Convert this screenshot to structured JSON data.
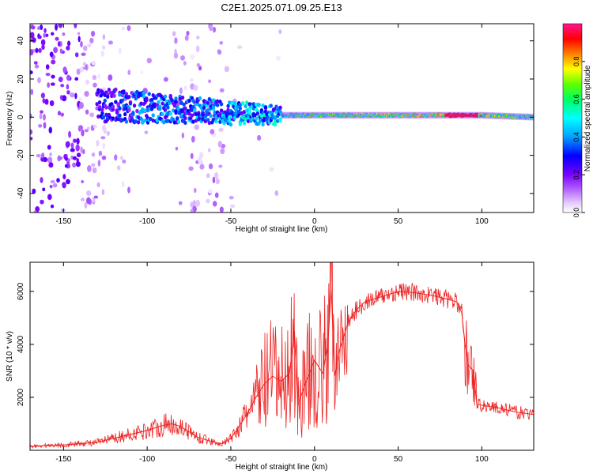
{
  "page_title": "C2E1.2025.071.09.25.E13",
  "chart_data": [
    {
      "type": "heatmap",
      "title": "C2E1.2025.071.09.25.E13",
      "xlabel": "Height of straight line (km)",
      "ylabel": "Frequency (Hz)",
      "xlim": [
        -170,
        131
      ],
      "ylim": [
        -50,
        49
      ],
      "xticks": [
        -150,
        -100,
        -50,
        0,
        50,
        100
      ],
      "yticks": [
        -40,
        -20,
        0,
        20,
        40
      ],
      "colorbar": {
        "label": "Normalized spectral amplitude",
        "range": [
          0,
          1
        ],
        "ticks": [
          "0.0",
          "0.2",
          "0.4",
          "0.6",
          "0.8"
        ],
        "tick_values": [
          0.0,
          0.2,
          0.4,
          0.6,
          0.8
        ]
      },
      "colormap": [
        "#ffffff",
        "#e6ccff",
        "#b366ff",
        "#7a00ff",
        "#0000ff",
        "#00a0ff",
        "#00ffff",
        "#00ff60",
        "#60ff00",
        "#ffff00",
        "#ff8000",
        "#ff0000",
        "#ff1493"
      ],
      "ridge": {
        "x": [
          -140,
          -120,
          -100,
          -80,
          -60,
          -50,
          -40,
          -30,
          -20,
          0,
          50,
          100,
          131
        ],
        "center_hz": [
          7,
          6,
          5,
          4,
          3,
          2,
          2,
          1,
          1,
          1,
          1,
          1,
          0
        ],
        "peak_amplitude": [
          0.3,
          0.4,
          0.5,
          0.5,
          0.5,
          0.55,
          0.6,
          0.6,
          0.6,
          0.7,
          0.75,
          0.9,
          0.6
        ]
      }
    },
    {
      "type": "line",
      "xlabel": "Height of straight line (km)",
      "ylabel": "SNR (10 * v/v)",
      "xlim": [
        -170,
        131
      ],
      "ylim": [
        0,
        7100
      ],
      "xticks": [
        -150,
        -100,
        -50,
        0,
        50,
        100
      ],
      "yticks": [
        2000,
        4000,
        6000
      ],
      "color": "#ee2222",
      "series": [
        {
          "x": [
            -170,
            -160,
            -150,
            -140,
            -130,
            -120,
            -110,
            -100,
            -95,
            -90,
            -85,
            -80,
            -75,
            -70,
            -60,
            -55,
            -50,
            -45,
            -40,
            -35,
            -30,
            -25,
            -20,
            -15,
            -12,
            -10,
            -5,
            0,
            5,
            8,
            10,
            12,
            15,
            20,
            25,
            30,
            40,
            50,
            60,
            70,
            80,
            85,
            88,
            90,
            92,
            95,
            97,
            100,
            110,
            120,
            131
          ],
          "y": [
            150,
            180,
            200,
            250,
            300,
            450,
            600,
            750,
            850,
            950,
            1000,
            900,
            700,
            500,
            300,
            250,
            450,
            900,
            1400,
            2000,
            2500,
            2800,
            2600,
            2900,
            4500,
            1700,
            2600,
            3400,
            2900,
            4000,
            6100,
            2800,
            3800,
            4800,
            5300,
            5600,
            5800,
            6000,
            5950,
            5850,
            5700,
            5600,
            5200,
            4000,
            3200,
            3000,
            1750,
            1700,
            1600,
            1450,
            1350
          ]
        }
      ]
    }
  ]
}
